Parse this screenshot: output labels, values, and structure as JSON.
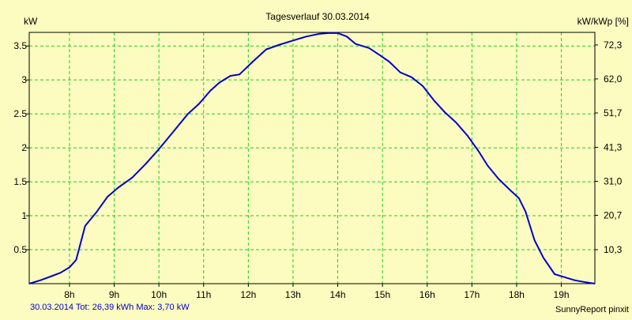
{
  "chart_data": {
    "type": "line",
    "title": "Tagesverlauf 30.03.2014",
    "ylabel": "kW",
    "y2label": "kW/kWp [%]",
    "xlim": [
      7.1,
      19.75
    ],
    "ylim": [
      0,
      3.7
    ],
    "y2lim": [
      0,
      76.1
    ],
    "grid": true,
    "legend": "none",
    "x_ticks": [
      {
        "value": 8,
        "label": "8h"
      },
      {
        "value": 9,
        "label": "9h"
      },
      {
        "value": 10,
        "label": "10h"
      },
      {
        "value": 11,
        "label": "11h"
      },
      {
        "value": 12,
        "label": "12h"
      },
      {
        "value": 13,
        "label": "13h"
      },
      {
        "value": 14,
        "label": "14h"
      },
      {
        "value": 15,
        "label": "15h"
      },
      {
        "value": 16,
        "label": "16h"
      },
      {
        "value": 17,
        "label": "17h"
      },
      {
        "value": 18,
        "label": "18h"
      },
      {
        "value": 19,
        "label": "19h"
      }
    ],
    "y_ticks": [
      {
        "value": 0.5,
        "label": "0.5"
      },
      {
        "value": 1,
        "label": "1"
      },
      {
        "value": 1.5,
        "label": "1.5"
      },
      {
        "value": 2,
        "label": "2"
      },
      {
        "value": 2.5,
        "label": "2.5"
      },
      {
        "value": 3,
        "label": "3"
      },
      {
        "value": 3.5,
        "label": "3.5"
      }
    ],
    "y2_ticks": [
      {
        "value": 10.3,
        "label": "10,3"
      },
      {
        "value": 20.7,
        "label": "20,7"
      },
      {
        "value": 31.0,
        "label": "31,0"
      },
      {
        "value": 41.3,
        "label": "41,3"
      },
      {
        "value": 51.7,
        "label": "51,7"
      },
      {
        "value": 62.0,
        "label": "62,0"
      },
      {
        "value": 72.3,
        "label": "72,3"
      }
    ],
    "series": [
      {
        "color": "#0000cc",
        "x": [
          7.1,
          7.35,
          7.6,
          7.8,
          8.0,
          8.15,
          8.35,
          8.6,
          8.85,
          9.1,
          9.4,
          9.7,
          10.0,
          10.3,
          10.65,
          10.9,
          11.15,
          11.35,
          11.6,
          11.8,
          12.1,
          12.4,
          12.7,
          13.0,
          13.3,
          13.6,
          13.8,
          14.0,
          14.2,
          14.4,
          14.7,
          14.95,
          15.15,
          15.4,
          15.65,
          15.9,
          16.15,
          16.4,
          16.65,
          16.9,
          17.15,
          17.35,
          17.6,
          17.85,
          18.05,
          18.2,
          18.4,
          18.6,
          18.85,
          19.05,
          19.3,
          19.55,
          19.75
        ],
        "values": [
          0.0,
          0.05,
          0.11,
          0.16,
          0.24,
          0.35,
          0.85,
          1.05,
          1.28,
          1.42,
          1.56,
          1.76,
          1.98,
          2.22,
          2.5,
          2.65,
          2.84,
          2.96,
          3.06,
          3.08,
          3.27,
          3.45,
          3.52,
          3.58,
          3.64,
          3.68,
          3.69,
          3.69,
          3.64,
          3.53,
          3.47,
          3.36,
          3.27,
          3.11,
          3.04,
          2.91,
          2.7,
          2.52,
          2.37,
          2.18,
          1.95,
          1.74,
          1.54,
          1.38,
          1.26,
          1.06,
          0.64,
          0.38,
          0.14,
          0.1,
          0.05,
          0.02,
          0.0
        ]
      }
    ]
  },
  "footer": {
    "summary": "30.03.2014 Tot: 26,39 kWh Max: 3,70 kW",
    "source": "SunnyReport pinxit"
  },
  "colors": {
    "background": "#fcfcc0",
    "grid": "#22cc22",
    "line": "#0000cc",
    "summary_text": "#0000cc"
  }
}
